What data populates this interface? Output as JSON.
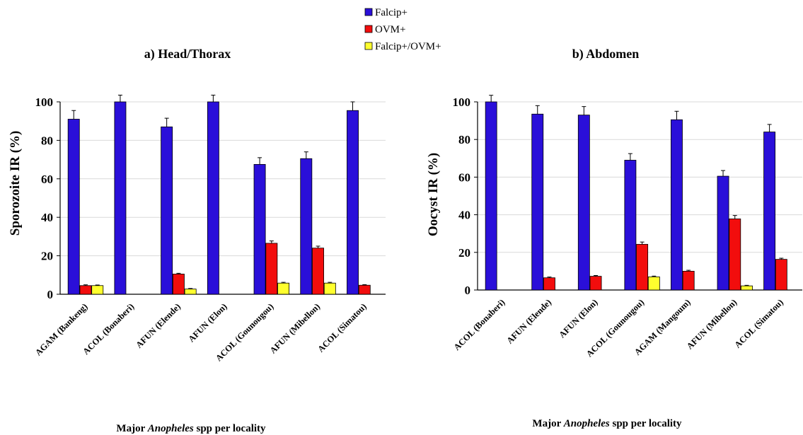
{
  "legend": {
    "entries": [
      {
        "name": "Falcip+",
        "color": "#2A0FD9"
      },
      {
        "name": "OVM+",
        "color": "#F20D0D"
      },
      {
        "name": "Falcip+/OVM+",
        "color": "#FFFF2E"
      }
    ]
  },
  "xlabel_parts": {
    "prefix": "Major ",
    "italic": "Anopheles",
    "suffix": " spp per locality"
  },
  "chart_data": [
    {
      "type": "bar",
      "title": "a) Head/Thorax",
      "ylabel": "Sporozoite IR (%)",
      "xlabel": "Major Anopheles spp per locality",
      "ylim": [
        0,
        100
      ],
      "yticks": [
        0,
        20,
        40,
        60,
        80,
        100
      ],
      "grid": true,
      "legend_position": "top-center",
      "categories": [
        "AGAM (Bankeng)",
        "ACOL (Bonaberi)",
        "AFUN (Elende)",
        "AFUN (Elon)",
        "ACOL (Gounougou)",
        "AFUN (Mibellon)",
        "ACOL (Simatou)"
      ],
      "series": [
        {
          "name": "Falcip+",
          "values": [
            91,
            100,
            87,
            100,
            67.5,
            70.5,
            95.5
          ],
          "errors": [
            4.5,
            3.5,
            4.5,
            3.5,
            3.5,
            3.5,
            4.5
          ]
        },
        {
          "name": "OVM+",
          "values": [
            4.5,
            0,
            10.5,
            0,
            26.5,
            24,
            4.7
          ],
          "errors": [
            0.4,
            0,
            0.4,
            0,
            1.2,
            1.0,
            0.3
          ]
        },
        {
          "name": "Falcip+/OVM+",
          "values": [
            4.5,
            0,
            2.7,
            0,
            5.8,
            5.8,
            0
          ],
          "errors": [
            0.3,
            0,
            0.3,
            0,
            0.4,
            0.4,
            0
          ]
        }
      ]
    },
    {
      "type": "bar",
      "title": "b) Abdomen",
      "ylabel": "Oocyst IR (%)",
      "xlabel": "Major Anopheles spp per locality",
      "ylim": [
        0,
        100
      ],
      "yticks": [
        0,
        20,
        40,
        60,
        80,
        100
      ],
      "grid": true,
      "categories": [
        "ACOL (Bonaberi)",
        "AFUN (Elende)",
        "AFUN (Elon)",
        "ACOL (Gounougou)",
        "AGAM (Mangoum)",
        "AFUN (Mibellon)",
        "ACOL (Simatou)"
      ],
      "series": [
        {
          "name": "Falcip+",
          "values": [
            100,
            93.5,
            93,
            69,
            90.5,
            60.5,
            84
          ],
          "errors": [
            3.5,
            4.5,
            4.5,
            3.5,
            4.5,
            3.0,
            4.0
          ]
        },
        {
          "name": "OVM+",
          "values": [
            0,
            6.5,
            7.3,
            24.3,
            10,
            37.8,
            16.3
          ],
          "errors": [
            0,
            0.4,
            0.4,
            1.2,
            0.5,
            1.8,
            0.6
          ]
        },
        {
          "name": "Falcip+/OVM+",
          "values": [
            0,
            0,
            0,
            7,
            0,
            2.2,
            0
          ],
          "errors": [
            0,
            0,
            0,
            0.4,
            0,
            0.3,
            0
          ]
        }
      ]
    }
  ]
}
